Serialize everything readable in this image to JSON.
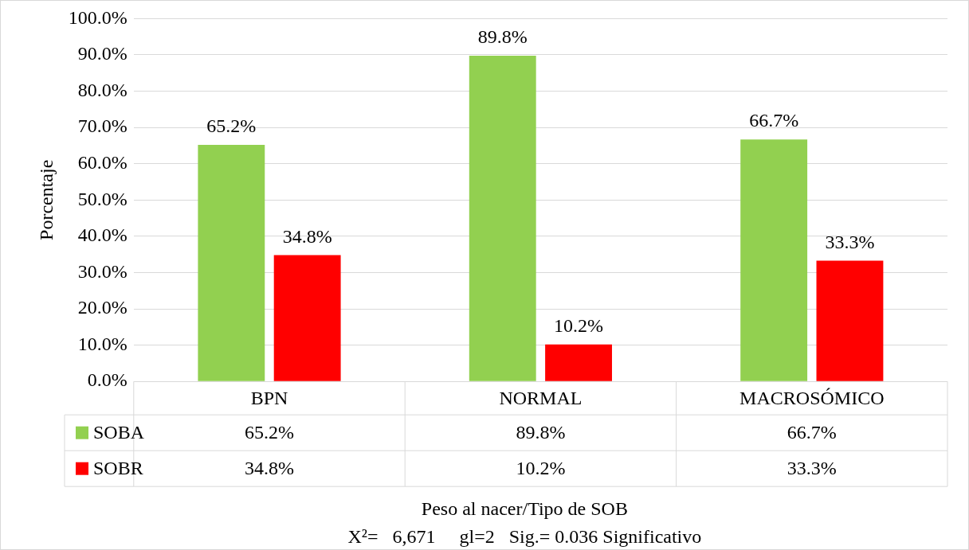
{
  "chart_data": {
    "type": "bar",
    "categories": [
      "BPN",
      "NORMAL",
      "MACROSÓMICO"
    ],
    "series": [
      {
        "name": "SOBA",
        "color": "#92d050",
        "values": [
          65.2,
          89.8,
          66.7
        ],
        "value_labels": [
          "65.2%",
          "89.8%",
          "66.7%"
        ]
      },
      {
        "name": "SOBR",
        "color": "#ff0000",
        "values": [
          34.8,
          10.2,
          33.3
        ],
        "value_labels": [
          "34.8%",
          "10.2%",
          "33.3%"
        ]
      }
    ],
    "ylabel": "Porcentaje",
    "xlabel": "Peso al nacer/Tipo de SOB",
    "ylim": [
      0,
      100
    ],
    "yticks": [
      {
        "value": 0,
        "label": "0.0%"
      },
      {
        "value": 10,
        "label": "10.0%"
      },
      {
        "value": 20,
        "label": "20.0%"
      },
      {
        "value": 30,
        "label": "30.0%"
      },
      {
        "value": 40,
        "label": "40.0%"
      },
      {
        "value": 50,
        "label": "50.0%"
      },
      {
        "value": 60,
        "label": "60.0%"
      },
      {
        "value": 70,
        "label": "70.0%"
      },
      {
        "value": 80,
        "label": "80.0%"
      },
      {
        "value": 90,
        "label": "90.0%"
      },
      {
        "value": 100,
        "label": "100.0%"
      }
    ],
    "grid": "y",
    "legend": "bottom",
    "annotations": [
      "X²=   6,671     gl=2   Sig.= 0.036 Significativo"
    ]
  }
}
